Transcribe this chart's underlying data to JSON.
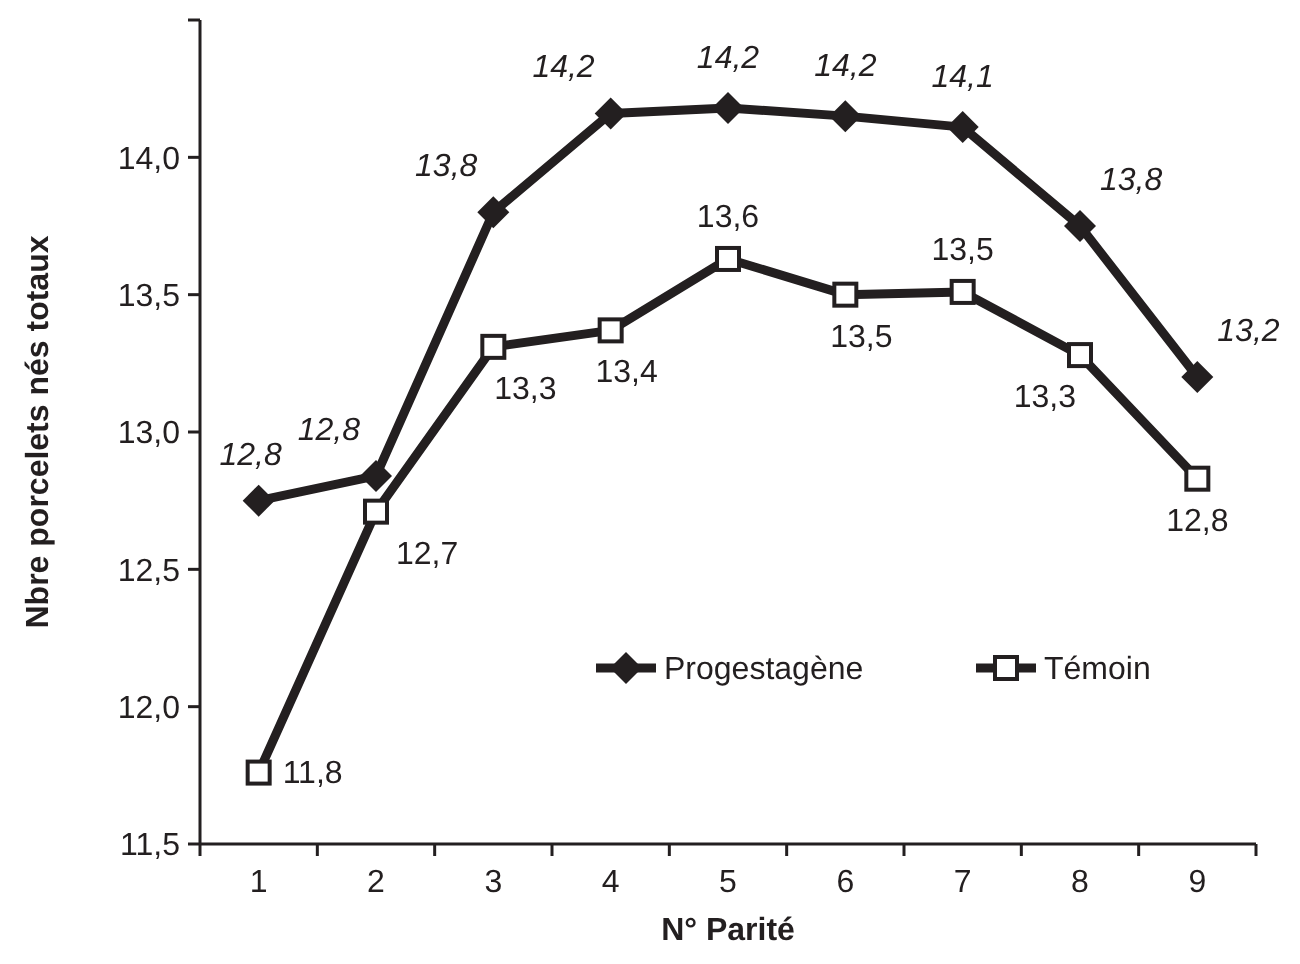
{
  "chart_data": {
    "type": "line",
    "xlabel": "N° Parité",
    "ylabel": "Nbre porcelets nés totaux",
    "categories": [
      "1",
      "2",
      "3",
      "4",
      "5",
      "6",
      "7",
      "8",
      "9"
    ],
    "ylim": [
      11.5,
      14.5
    ],
    "yticks": [
      {
        "value": 11.5,
        "label": "11,5"
      },
      {
        "value": 12,
        "label": "12,0"
      },
      {
        "value": 12.5,
        "label": "12,5"
      },
      {
        "value": 13,
        "label": "13,0"
      },
      {
        "value": 13.5,
        "label": "13,5"
      },
      {
        "value": 14,
        "label": "14,0"
      },
      {
        "value": 14.5,
        "label": null
      }
    ],
    "grid": false,
    "legend": "bottom right",
    "line_style": "solid",
    "series": [
      {
        "name": "Progestagène",
        "color": "#231f20",
        "marker": "diamond",
        "values": [
          12.75,
          12.84,
          13.8,
          14.16,
          14.18,
          14.15,
          14.11,
          13.75,
          13.2
        ],
        "value_labels": [
          "12,8",
          "12,8",
          "13,8",
          "14,2",
          "14,2",
          "14,2",
          "14,1",
          "13,8",
          "13,2"
        ]
      },
      {
        "name": "Témoin",
        "color": "#231f20",
        "marker": "square",
        "values": [
          11.76,
          12.71,
          13.31,
          13.37,
          13.63,
          13.5,
          13.51,
          13.28,
          12.83
        ],
        "value_labels": [
          "11,8",
          "12,7",
          "13,3",
          "13,4",
          "13,6",
          "13,5",
          "13,5",
          "13,3",
          "12,8"
        ]
      }
    ]
  }
}
